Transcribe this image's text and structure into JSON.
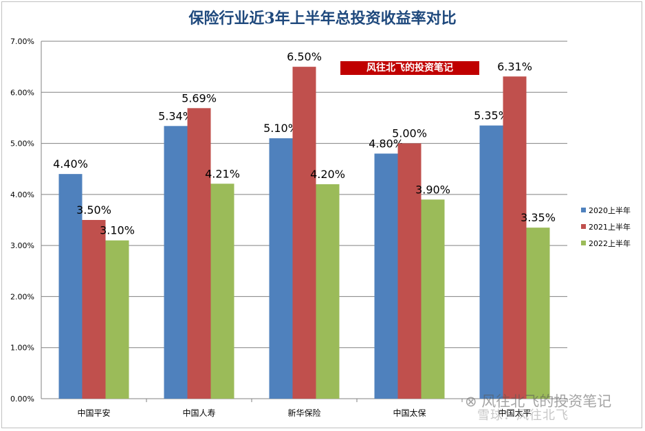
{
  "chart_data": {
    "type": "bar",
    "title": "保险行业近3年上半年总投资收益率对比",
    "xlabel": "",
    "ylabel": "",
    "categories": [
      "中国平安",
      "中国人寿",
      "新华保险",
      "中国太保",
      "中国太平"
    ],
    "series": [
      {
        "name": "2020上半年",
        "color": "#4f81bd",
        "values": [
          4.4,
          5.34,
          5.1,
          4.8,
          5.35
        ]
      },
      {
        "name": "2021上半年",
        "color": "#c0504d",
        "values": [
          3.5,
          5.69,
          6.5,
          5.0,
          6.31
        ]
      },
      {
        "name": "2022上半年",
        "color": "#9bbb59",
        "values": [
          3.1,
          4.21,
          4.2,
          3.9,
          3.35
        ]
      }
    ],
    "ylim": [
      0,
      7
    ],
    "yticks": [
      0,
      1,
      2,
      3,
      4,
      5,
      6,
      7
    ],
    "value_format": "percent_2dp",
    "grid": true,
    "legend_position": "right"
  },
  "banner_text": "风往北飞的投资笔记",
  "watermark": {
    "line1": "风往北飞的投资笔记",
    "line2": "雪球：风往北飞",
    "icon": "wechat-icon"
  },
  "colors": {
    "title": "#1f497d",
    "banner_bg": "#c00000",
    "gridline": "#808080"
  }
}
